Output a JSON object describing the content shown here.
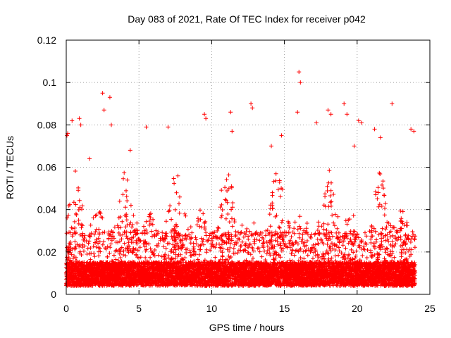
{
  "chart_data": {
    "type": "scatter",
    "title": "Day 083 of 2021, Rate Of TEC Index for receiver p042",
    "xlabel": "GPS time / hours",
    "ylabel": "ROTI / TECUs",
    "xlim": [
      0,
      25
    ],
    "ylim": [
      0,
      0.12
    ],
    "x_ticks": [
      0,
      5,
      10,
      15,
      20,
      25
    ],
    "x_tick_labels": [
      "0",
      "5",
      "10",
      "15",
      "20",
      "25"
    ],
    "y_ticks": [
      0,
      0.02,
      0.04,
      0.06,
      0.08,
      0.1,
      0.12
    ],
    "y_tick_labels": [
      "0",
      "0.02",
      "0.04",
      "0.06",
      "0.08",
      "0.1",
      "0.12"
    ],
    "grid": true,
    "marker": "plus",
    "marker_color": "#ff0000",
    "background": "#ffffff",
    "series": [
      {
        "name": "ROTI",
        "x": [
          0.05,
          0.1,
          0.4,
          0.9,
          1.0,
          1.6,
          2.5,
          2.6,
          3.0,
          3.1,
          4.4,
          5.5,
          7.0,
          9.5,
          9.6,
          11.3,
          11.4,
          12.7,
          12.8,
          14.1,
          14.8,
          15.9,
          16.0,
          16.1,
          17.2,
          18.0,
          18.2,
          19.1,
          19.3,
          19.8,
          20.1,
          20.3,
          21.2,
          21.6,
          22.4,
          23.7,
          23.9
        ],
        "y": [
          0.075,
          0.076,
          0.082,
          0.083,
          0.08,
          0.064,
          0.095,
          0.087,
          0.093,
          0.08,
          0.068,
          0.079,
          0.079,
          0.085,
          0.083,
          0.086,
          0.077,
          0.09,
          0.088,
          0.07,
          0.075,
          0.086,
          0.105,
          0.1,
          0.081,
          0.087,
          0.085,
          0.09,
          0.085,
          0.07,
          0.082,
          0.081,
          0.078,
          0.074,
          0.09,
          0.078,
          0.077
        ]
      }
    ],
    "dense_band": {
      "x_range": [
        0,
        24
      ],
      "typical_range": [
        0.004,
        0.02
      ],
      "frequent_peaks_up_to": 0.06,
      "sample_interval_hours": 0.012
    }
  }
}
